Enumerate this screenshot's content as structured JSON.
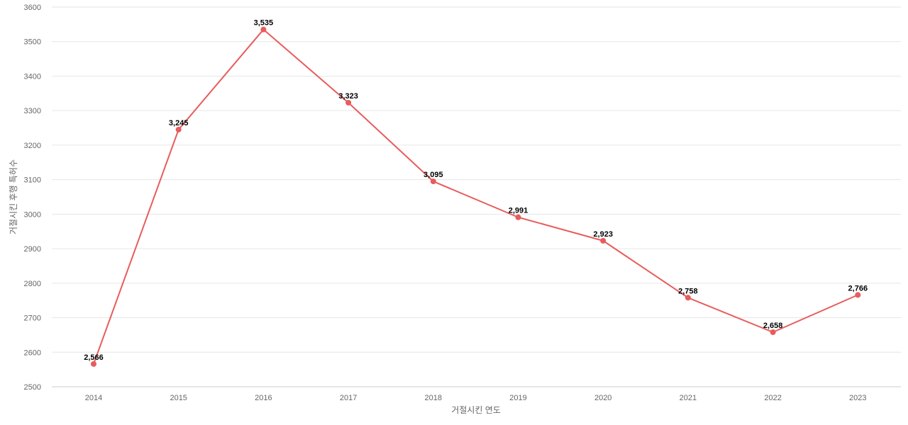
{
  "chart_data": {
    "type": "line",
    "title": "",
    "xlabel": "거절시킨 연도",
    "ylabel": "거절시킨 후행 특허수",
    "categories": [
      "2014",
      "2015",
      "2016",
      "2017",
      "2018",
      "2019",
      "2020",
      "2021",
      "2022",
      "2023"
    ],
    "series": [
      {
        "values": [
          2566,
          3245,
          3535,
          3323,
          3095,
          2991,
          2923,
          2758,
          2658,
          2766
        ],
        "value_labels": [
          "2,566",
          "3,245",
          "3,535",
          "3,323",
          "3,095",
          "2,991",
          "2,923",
          "2,758",
          "2,658",
          "2,766"
        ],
        "color": "#e85c5c"
      }
    ],
    "ylim": [
      2500,
      3600
    ],
    "yticks": [
      "2500",
      "2600",
      "2700",
      "2800",
      "2900",
      "3000",
      "3100",
      "3200",
      "3300",
      "3400",
      "3500",
      "3600"
    ],
    "grid": true,
    "legend": "none"
  }
}
